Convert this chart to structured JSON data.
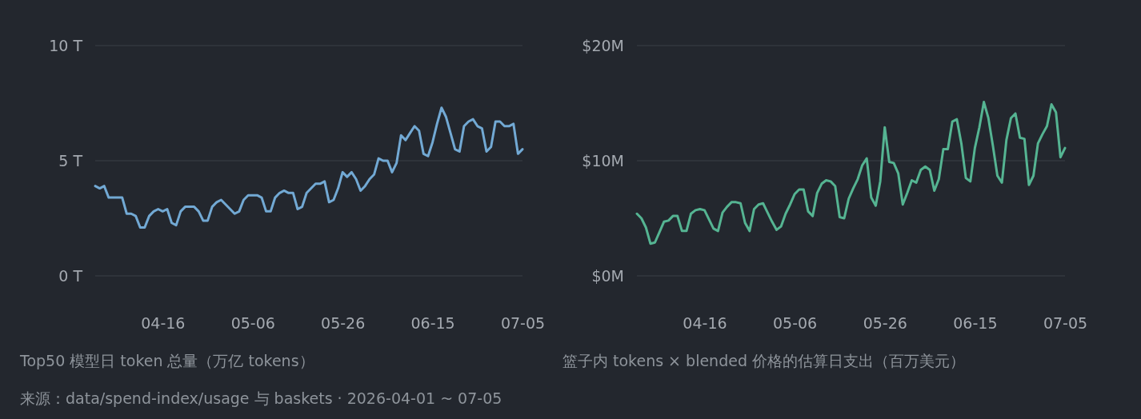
{
  "chart_data": [
    {
      "type": "line",
      "title": "Top50 模型日 token 总量（万亿 tokens）",
      "x": [
        "2026-04-01",
        "2026-04-02",
        "2026-04-03",
        "2026-04-04",
        "2026-04-05",
        "2026-04-06",
        "2026-04-07",
        "2026-04-08",
        "2026-04-09",
        "2026-04-10",
        "2026-04-11",
        "2026-04-12",
        "2026-04-13",
        "2026-04-14",
        "2026-04-15",
        "2026-04-16",
        "2026-04-17",
        "2026-04-18",
        "2026-04-19",
        "2026-04-20",
        "2026-04-21",
        "2026-04-22",
        "2026-04-23",
        "2026-04-24",
        "2026-04-25",
        "2026-04-26",
        "2026-04-27",
        "2026-04-28",
        "2026-04-29",
        "2026-04-30",
        "2026-05-01",
        "2026-05-02",
        "2026-05-03",
        "2026-05-04",
        "2026-05-05",
        "2026-05-06",
        "2026-05-07",
        "2026-05-08",
        "2026-05-09",
        "2026-05-10",
        "2026-05-11",
        "2026-05-12",
        "2026-05-13",
        "2026-05-14",
        "2026-05-15",
        "2026-05-16",
        "2026-05-17",
        "2026-05-18",
        "2026-05-19",
        "2026-05-20",
        "2026-05-21",
        "2026-05-22",
        "2026-05-23",
        "2026-05-24",
        "2026-05-25",
        "2026-05-26",
        "2026-05-27",
        "2026-05-28",
        "2026-05-29",
        "2026-05-30",
        "2026-05-31",
        "2026-06-01",
        "2026-06-02",
        "2026-06-03",
        "2026-06-04",
        "2026-06-05",
        "2026-06-06",
        "2026-06-07",
        "2026-06-08",
        "2026-06-09",
        "2026-06-10",
        "2026-06-11",
        "2026-06-12",
        "2026-06-13",
        "2026-06-14",
        "2026-06-15",
        "2026-06-16",
        "2026-06-17",
        "2026-06-18",
        "2026-06-19",
        "2026-06-20",
        "2026-06-21",
        "2026-06-22",
        "2026-06-23",
        "2026-06-24",
        "2026-06-25",
        "2026-06-26",
        "2026-06-27",
        "2026-06-28",
        "2026-06-29",
        "2026-06-30",
        "2026-07-01",
        "2026-07-02",
        "2026-07-03",
        "2026-07-04",
        "2026-07-05"
      ],
      "series": [
        {
          "color": "#72a9d4",
          "values": [
            3.9,
            3.8,
            3.9,
            3.4,
            3.4,
            3.4,
            3.4,
            2.7,
            2.7,
            2.6,
            2.1,
            2.1,
            2.6,
            2.8,
            2.9,
            2.8,
            2.9,
            2.3,
            2.2,
            2.8,
            3.0,
            3.0,
            3.0,
            2.8,
            2.4,
            2.4,
            3.0,
            3.2,
            3.3,
            3.1,
            2.9,
            2.7,
            2.8,
            3.3,
            3.5,
            3.5,
            3.5,
            3.4,
            2.8,
            2.8,
            3.4,
            3.6,
            3.7,
            3.6,
            3.6,
            2.9,
            3.0,
            3.6,
            3.8,
            4.0,
            4.0,
            4.1,
            3.2,
            3.3,
            3.8,
            4.5,
            4.3,
            4.5,
            4.2,
            3.7,
            3.9,
            4.2,
            4.4,
            5.1,
            5.0,
            5.0,
            4.5,
            4.9,
            6.1,
            5.9,
            6.2,
            6.5,
            6.3,
            5.3,
            5.2,
            5.8,
            6.6,
            7.3,
            6.9,
            6.2,
            5.5,
            5.4,
            6.5,
            6.7,
            6.8,
            6.5,
            6.4,
            5.4,
            5.6,
            6.7,
            6.7,
            6.5,
            6.5,
            6.6,
            5.3,
            5.5
          ]
        }
      ],
      "xlim": [
        "2026-04-01",
        "2026-07-05"
      ],
      "xticks": [
        {
          "value": "2026-04-16",
          "label": "04-16"
        },
        {
          "value": "2026-05-06",
          "label": "05-06"
        },
        {
          "value": "2026-05-26",
          "label": "05-26"
        },
        {
          "value": "2026-06-15",
          "label": "06-15"
        },
        {
          "value": "2026-07-05",
          "label": "07-05"
        }
      ],
      "ylim": [
        0,
        10
      ],
      "yticks": [
        {
          "value": 0,
          "label": "0 T"
        },
        {
          "value": 5,
          "label": "5 T"
        },
        {
          "value": 10,
          "label": "10 T"
        }
      ],
      "grid": "y",
      "marker": "none",
      "line_style": "solid",
      "annotations": [
        "来源：data/spend-index/usage 与 baskets · 2026-04-01 ~ 07-05"
      ]
    },
    {
      "type": "line",
      "title": "篮子内 tokens × blended 价格的估算日支出（百万美元）",
      "x": [
        "2026-04-01",
        "2026-04-02",
        "2026-04-03",
        "2026-04-04",
        "2026-04-05",
        "2026-04-06",
        "2026-04-07",
        "2026-04-08",
        "2026-04-09",
        "2026-04-10",
        "2026-04-11",
        "2026-04-12",
        "2026-04-13",
        "2026-04-14",
        "2026-04-15",
        "2026-04-16",
        "2026-04-17",
        "2026-04-18",
        "2026-04-19",
        "2026-04-20",
        "2026-04-21",
        "2026-04-22",
        "2026-04-23",
        "2026-04-24",
        "2026-04-25",
        "2026-04-26",
        "2026-04-27",
        "2026-04-28",
        "2026-04-29",
        "2026-04-30",
        "2026-05-01",
        "2026-05-02",
        "2026-05-03",
        "2026-05-04",
        "2026-05-05",
        "2026-05-06",
        "2026-05-07",
        "2026-05-08",
        "2026-05-09",
        "2026-05-10",
        "2026-05-11",
        "2026-05-12",
        "2026-05-13",
        "2026-05-14",
        "2026-05-15",
        "2026-05-16",
        "2026-05-17",
        "2026-05-18",
        "2026-05-19",
        "2026-05-20",
        "2026-05-21",
        "2026-05-22",
        "2026-05-23",
        "2026-05-24",
        "2026-05-25",
        "2026-05-26",
        "2026-05-27",
        "2026-05-28",
        "2026-05-29",
        "2026-05-30",
        "2026-05-31",
        "2026-06-01",
        "2026-06-02",
        "2026-06-03",
        "2026-06-04",
        "2026-06-05",
        "2026-06-06",
        "2026-06-07",
        "2026-06-08",
        "2026-06-09",
        "2026-06-10",
        "2026-06-11",
        "2026-06-12",
        "2026-06-13",
        "2026-06-14",
        "2026-06-15",
        "2026-06-16",
        "2026-06-17",
        "2026-06-18",
        "2026-06-19",
        "2026-06-20",
        "2026-06-21",
        "2026-06-22",
        "2026-06-23",
        "2026-06-24",
        "2026-06-25",
        "2026-06-26",
        "2026-06-27",
        "2026-06-28",
        "2026-06-29",
        "2026-06-30",
        "2026-07-01",
        "2026-07-02",
        "2026-07-03",
        "2026-07-04",
        "2026-07-05"
      ],
      "series": [
        {
          "color": "#55b492",
          "values": [
            5.4,
            5.0,
            4.2,
            2.8,
            2.9,
            3.8,
            4.7,
            4.8,
            5.2,
            5.2,
            3.9,
            3.9,
            5.4,
            5.7,
            5.8,
            5.7,
            4.9,
            4.1,
            3.9,
            5.5,
            6.0,
            6.4,
            6.4,
            6.3,
            4.6,
            3.9,
            5.8,
            6.2,
            6.3,
            5.5,
            4.7,
            4.0,
            4.3,
            5.4,
            6.2,
            7.1,
            7.5,
            7.5,
            5.6,
            5.2,
            7.2,
            8.0,
            8.3,
            8.2,
            7.8,
            5.1,
            5.0,
            6.7,
            7.6,
            8.4,
            9.6,
            10.2,
            6.8,
            6.1,
            8.2,
            12.9,
            9.9,
            9.8,
            8.9,
            6.2,
            7.2,
            8.3,
            8.1,
            9.2,
            9.5,
            9.2,
            7.4,
            8.4,
            11.0,
            11.0,
            13.4,
            13.6,
            11.5,
            8.5,
            8.2,
            11.1,
            12.9,
            15.1,
            13.7,
            11.3,
            8.7,
            8.1,
            11.8,
            13.7,
            14.1,
            12.0,
            11.9,
            7.9,
            8.7,
            11.5,
            12.3,
            13.0,
            14.9,
            14.2,
            10.3,
            11.1
          ]
        }
      ],
      "xlim": [
        "2026-04-01",
        "2026-07-05"
      ],
      "xticks": [
        {
          "value": "2026-04-16",
          "label": "04-16"
        },
        {
          "value": "2026-05-06",
          "label": "05-06"
        },
        {
          "value": "2026-05-26",
          "label": "05-26"
        },
        {
          "value": "2026-06-15",
          "label": "06-15"
        },
        {
          "value": "2026-07-05",
          "label": "07-05"
        }
      ],
      "ylim": [
        0,
        20
      ],
      "yticks": [
        {
          "value": 0,
          "label": "$0M"
        },
        {
          "value": 10,
          "label": "$10M"
        },
        {
          "value": 20,
          "label": "$20M"
        }
      ],
      "grid": "y",
      "marker": "none",
      "line_style": "solid"
    }
  ]
}
